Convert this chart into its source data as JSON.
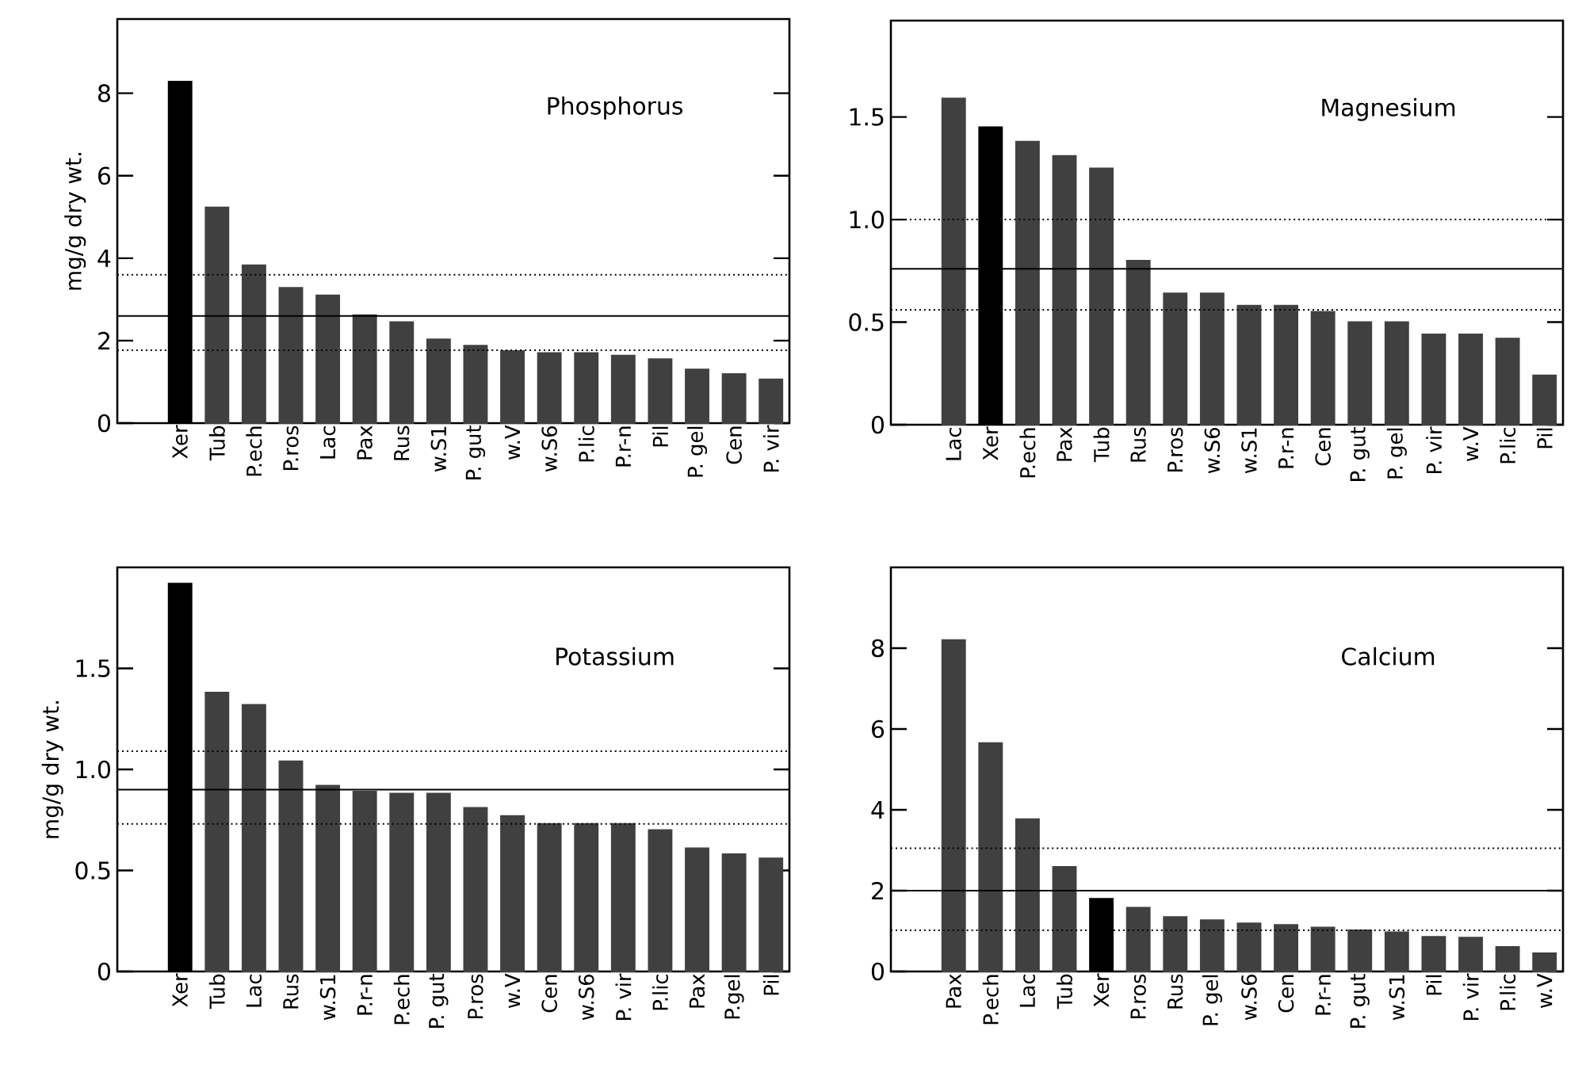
{
  "chart_data": [
    {
      "type": "bar",
      "title": "Phosphorus",
      "ylabel": "mg/g  dry wt.",
      "categories": [
        "Xer",
        "Tub",
        "P.ech",
        "P.ros",
        "Lac",
        "Pax",
        "Rus",
        "w.S1",
        "P. gut",
        "w.V",
        "w.S6",
        "P.lic",
        "P.r-n",
        "Pil",
        "P. gel",
        "Cen",
        "P. vir"
      ],
      "values": [
        8.28,
        5.23,
        3.83,
        3.28,
        3.1,
        2.62,
        2.45,
        2.03,
        1.88,
        1.75,
        1.7,
        1.7,
        1.64,
        1.55,
        1.3,
        1.19,
        1.06
      ],
      "colors": [
        "#000000",
        "#404040",
        "#404040",
        "#404040",
        "#404040",
        "#404040",
        "#404040",
        "#404040",
        "#404040",
        "#404040",
        "#404040",
        "#404040",
        "#404040",
        "#404040",
        "#404040",
        "#404040",
        "#404040"
      ],
      "ylim": [
        0,
        9.8
      ],
      "yticks": [
        0,
        2,
        4,
        6,
        8
      ],
      "ref_lines": [
        {
          "axis": "y",
          "value": 3.6,
          "line_style": "dotted"
        },
        {
          "axis": "y",
          "value": 2.6,
          "line_style": "solid"
        },
        {
          "axis": "y",
          "value": 1.77,
          "line_style": "dotted"
        }
      ]
    },
    {
      "type": "bar",
      "title": "Magnesium",
      "categories": [
        "Lac",
        "Xer",
        "P.ech",
        "Pax",
        "Tub",
        "Rus",
        "P.ros",
        "w.S6",
        "w.S1",
        "P.r-n",
        "Cen",
        "P. gut",
        "P. gel",
        "P. vir",
        "w.V",
        "P.lic",
        "Pil"
      ],
      "values": [
        1.59,
        1.45,
        1.38,
        1.31,
        1.25,
        0.8,
        0.64,
        0.64,
        0.58,
        0.58,
        0.55,
        0.5,
        0.5,
        0.44,
        0.44,
        0.42,
        0.24
      ],
      "colors": [
        "#404040",
        "#000000",
        "#404040",
        "#404040",
        "#404040",
        "#404040",
        "#404040",
        "#404040",
        "#404040",
        "#404040",
        "#404040",
        "#404040",
        "#404040",
        "#404040",
        "#404040",
        "#404040",
        "#404040"
      ],
      "ylim": [
        0,
        1.97
      ],
      "yticks": [
        0,
        {
          "value": 0.5,
          "label": "0.5"
        },
        {
          "value": 1.0,
          "label": "1.0"
        },
        {
          "value": 1.5,
          "label": "1.5"
        }
      ],
      "ref_lines": [
        {
          "axis": "y",
          "value": 1.0,
          "line_style": "dotted"
        },
        {
          "axis": "y",
          "value": 0.76,
          "line_style": "solid"
        },
        {
          "axis": "y",
          "value": 0.56,
          "line_style": "dotted"
        }
      ]
    },
    {
      "type": "bar",
      "title": "Potassium",
      "ylabel": "mg/g  dry wt.",
      "categories": [
        "Xer",
        "Tub",
        "Lac",
        "Rus",
        "w.S1",
        "P.r-n",
        "P.ech",
        "P. gut",
        "P.ros",
        "w.V",
        "Cen",
        "w.S6",
        "P. vir",
        "P.lic",
        "Pax",
        "P.gel",
        "Pil"
      ],
      "values": [
        1.92,
        1.38,
        1.32,
        1.04,
        0.92,
        0.89,
        0.88,
        0.88,
        0.81,
        0.77,
        0.73,
        0.73,
        0.73,
        0.7,
        0.61,
        0.58,
        0.56
      ],
      "colors": [
        "#000000",
        "#404040",
        "#404040",
        "#404040",
        "#404040",
        "#404040",
        "#404040",
        "#404040",
        "#404040",
        "#404040",
        "#404040",
        "#404040",
        "#404040",
        "#404040",
        "#404040",
        "#404040",
        "#404040"
      ],
      "ylim": [
        0,
        2.0
      ],
      "yticks": [
        0,
        {
          "value": 0.5,
          "label": "0.5"
        },
        {
          "value": 1.0,
          "label": "1.0"
        },
        {
          "value": 1.5,
          "label": "1.5"
        }
      ],
      "ref_lines": [
        {
          "axis": "y",
          "value": 1.09,
          "line_style": "dotted"
        },
        {
          "axis": "y",
          "value": 0.9,
          "line_style": "solid"
        },
        {
          "axis": "y",
          "value": 0.73,
          "line_style": "dotted"
        }
      ]
    },
    {
      "type": "bar",
      "title": "Calcium",
      "categories": [
        "Pax",
        "P.ech",
        "Lac",
        "Tub",
        "Xer",
        "P.ros",
        "Rus",
        "P. gel",
        "w.S6",
        "Cen",
        "P.r-n",
        "P. gut",
        "w.S1",
        "Pil",
        "P. vir",
        "P.lic",
        "w.V"
      ],
      "values": [
        8.2,
        5.65,
        3.77,
        2.59,
        1.8,
        1.58,
        1.35,
        1.27,
        1.19,
        1.15,
        1.09,
        1.02,
        0.97,
        0.86,
        0.84,
        0.61,
        0.45
      ],
      "colors": [
        "#404040",
        "#404040",
        "#404040",
        "#404040",
        "#000000",
        "#404040",
        "#404040",
        "#404040",
        "#404040",
        "#404040",
        "#404040",
        "#404040",
        "#404040",
        "#404040",
        "#404040",
        "#404040",
        "#404040"
      ],
      "ylim": [
        0,
        10
      ],
      "yticks": [
        0,
        2,
        4,
        6,
        8
      ],
      "ref_lines": [
        {
          "axis": "y",
          "value": 3.05,
          "line_style": "dotted"
        },
        {
          "axis": "y",
          "value": 2.0,
          "line_style": "solid"
        },
        {
          "axis": "y",
          "value": 1.02,
          "line_style": "dotted"
        }
      ]
    }
  ]
}
